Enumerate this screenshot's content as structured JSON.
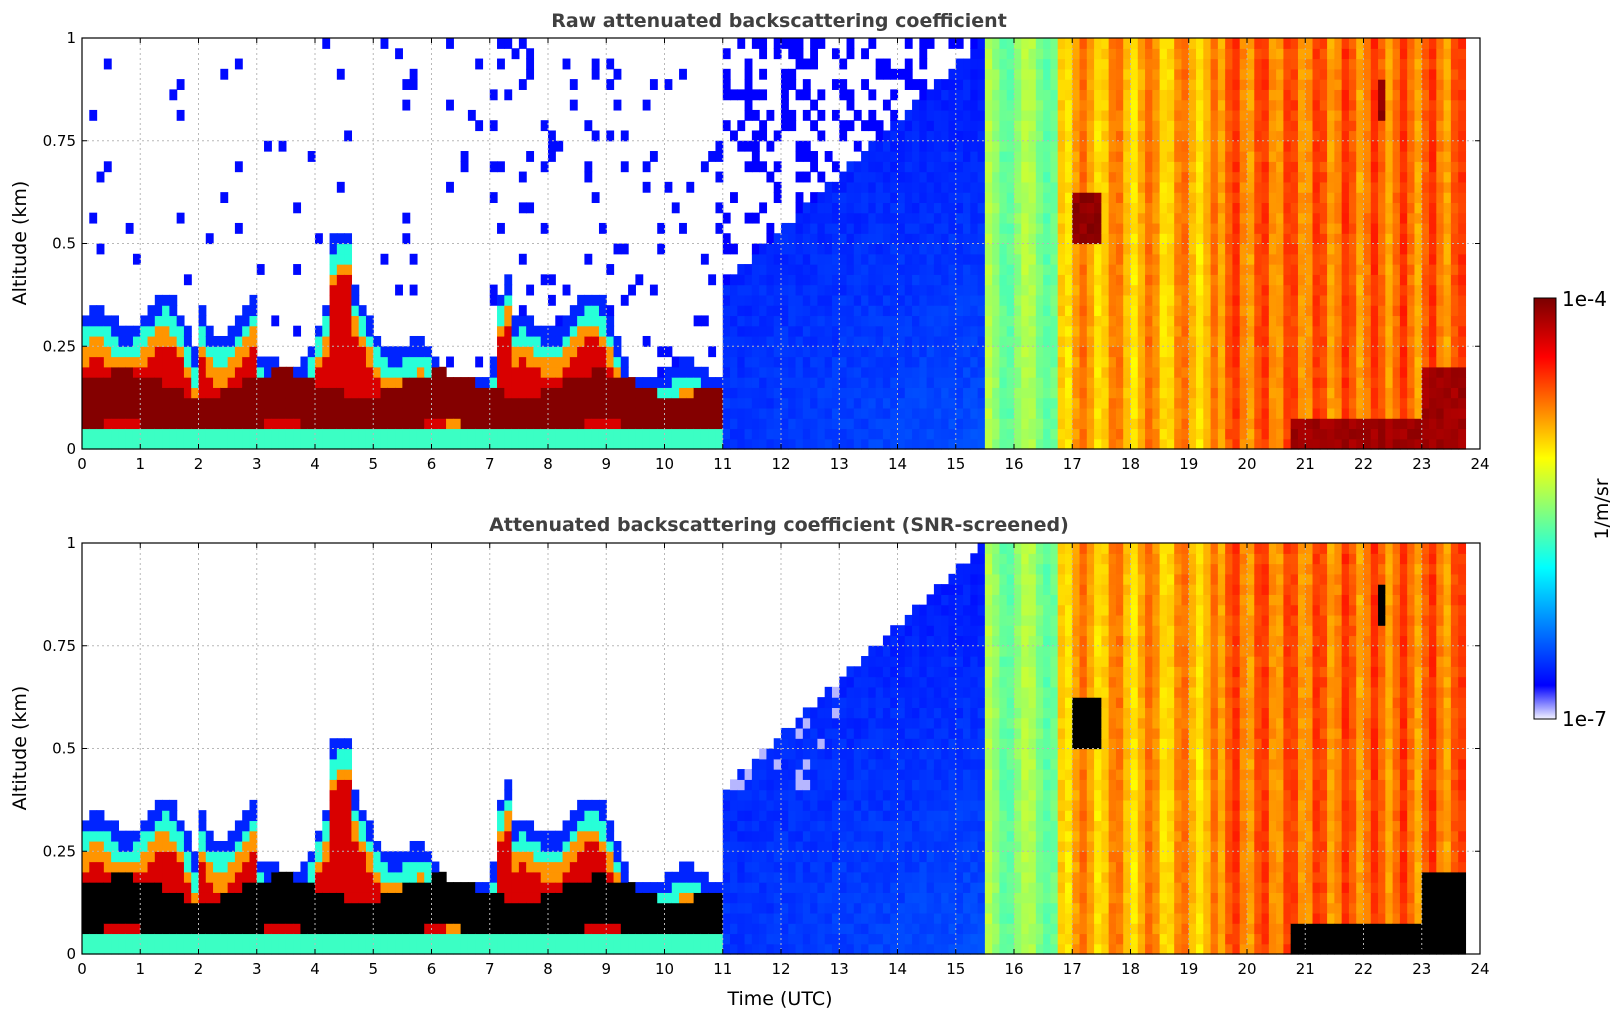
{
  "chart_data": [
    {
      "type": "heatmap",
      "title": "Raw attenuated backscattering coefficient",
      "xlabel": "",
      "ylabel": "Altitude (km)",
      "xlim": [
        0,
        24
      ],
      "ylim": [
        0,
        1
      ],
      "x_ticks": [
        "0",
        "1",
        "2",
        "3",
        "4",
        "5",
        "6",
        "7",
        "8",
        "9",
        "10",
        "11",
        "12",
        "13",
        "14",
        "15",
        "16",
        "17",
        "18",
        "19",
        "20",
        "21",
        "22",
        "23",
        "24"
      ],
      "y_ticks": [
        "0",
        "0.25",
        "0.5",
        "0.75",
        "1"
      ],
      "grid": true,
      "screened": false
    },
    {
      "type": "heatmap",
      "title": "Attenuated backscattering coefficient (SNR-screened)",
      "xlabel": "Time (UTC)",
      "ylabel": "Altitude (km)",
      "xlim": [
        0,
        24
      ],
      "ylim": [
        0,
        1
      ],
      "x_ticks": [
        "0",
        "1",
        "2",
        "3",
        "4",
        "5",
        "6",
        "7",
        "8",
        "9",
        "10",
        "11",
        "12",
        "13",
        "14",
        "15",
        "16",
        "17",
        "18",
        "19",
        "20",
        "21",
        "22",
        "23",
        "24"
      ],
      "y_ticks": [
        "0",
        "0.25",
        "0.5",
        "0.75",
        "1"
      ],
      "grid": true,
      "screened": true
    }
  ],
  "colorbar": {
    "label": "1/m/sr",
    "max_label": "1e-4",
    "min_label": "1e-7",
    "scale": "log",
    "colormap": "jet"
  }
}
